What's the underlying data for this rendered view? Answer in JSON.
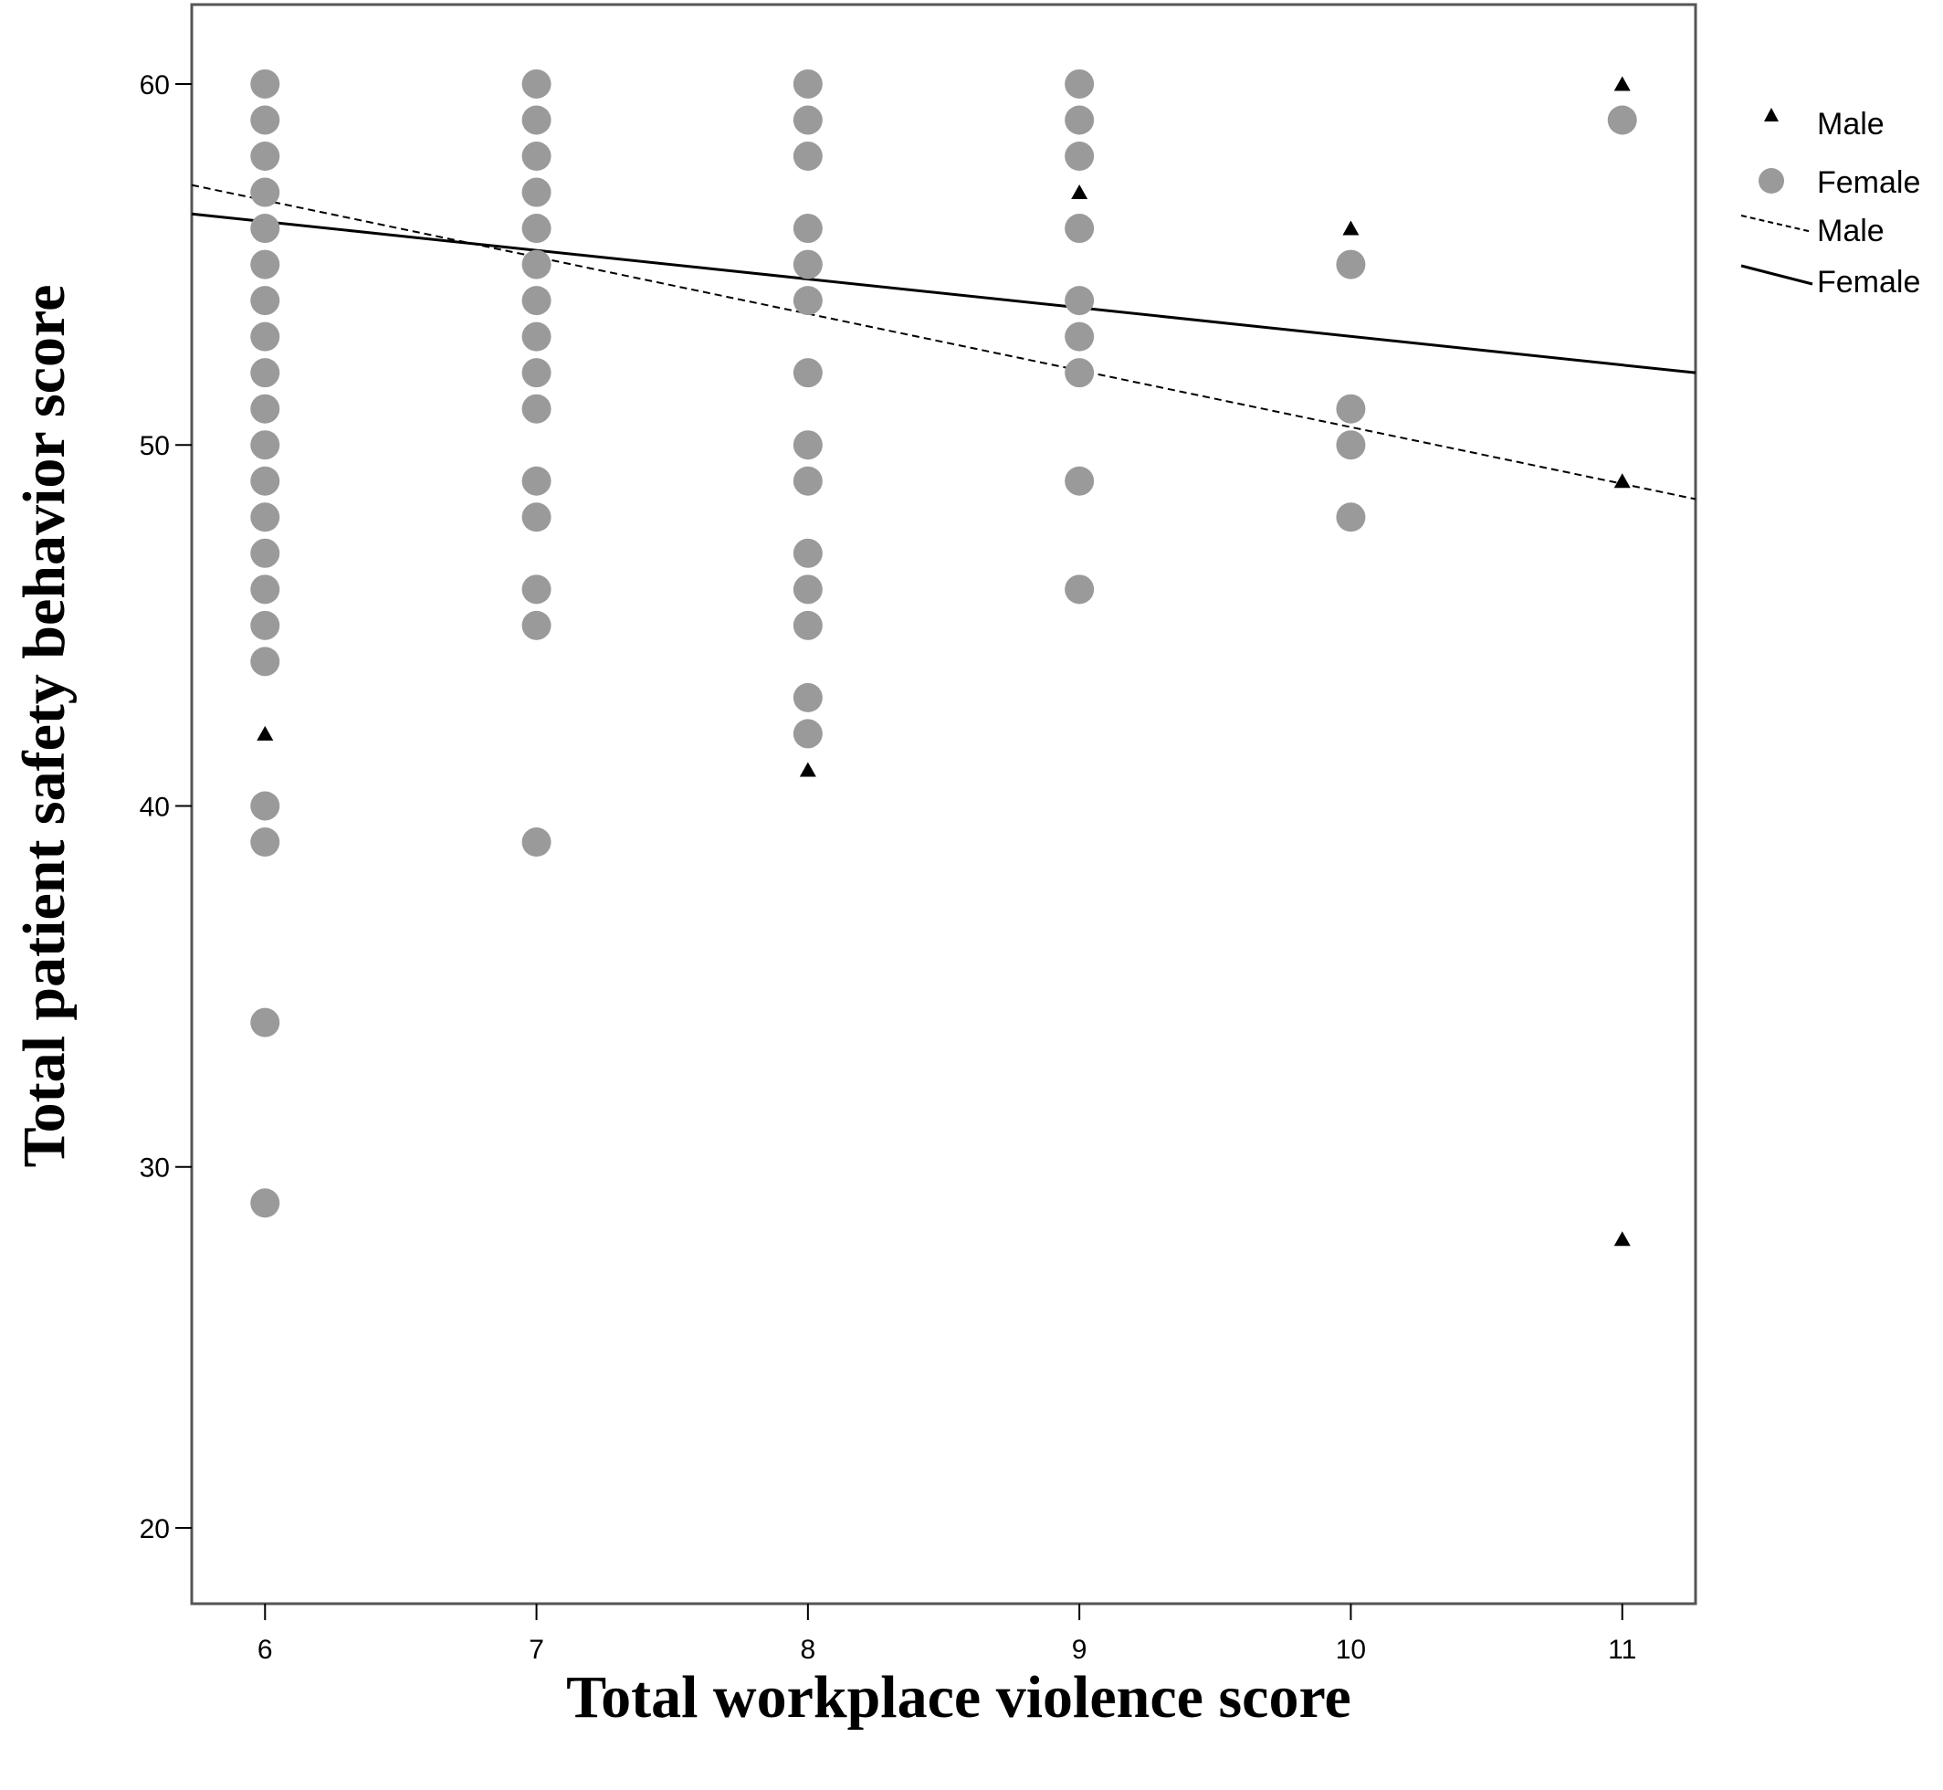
{
  "chart_data": {
    "type": "scatter",
    "title": "",
    "xlabel": "Total workplace violence score",
    "ylabel": "Total patient safety behavior score",
    "xlim": [
      5.73,
      11.27
    ],
    "ylim": [
      17.9,
      62.2
    ],
    "x_ticks": [
      6,
      7,
      8,
      9,
      10,
      11
    ],
    "y_ticks": [
      20,
      30,
      40,
      50,
      60
    ],
    "grid": false,
    "legend_position": "outside-right",
    "legend": [
      {
        "label": "Male",
        "kind": "marker-triangle"
      },
      {
        "label": "Female",
        "kind": "marker-circle"
      },
      {
        "label": "Male",
        "kind": "line-dashed"
      },
      {
        "label": "Female",
        "kind": "line-solid"
      }
    ],
    "colors": {
      "male": "#000000",
      "female": "#9a9a9a",
      "line": "#000000"
    },
    "series": [
      {
        "name": "Male",
        "marker": "triangle",
        "points": [
          [
            6,
            42
          ],
          [
            8,
            41
          ],
          [
            9,
            57
          ],
          [
            10,
            56
          ],
          [
            11,
            60
          ],
          [
            11,
            49
          ],
          [
            11,
            28
          ]
        ]
      },
      {
        "name": "Female",
        "marker": "circle",
        "points": [
          [
            6,
            60
          ],
          [
            6,
            59
          ],
          [
            6,
            58
          ],
          [
            6,
            57
          ],
          [
            6,
            56
          ],
          [
            6,
            55
          ],
          [
            6,
            54
          ],
          [
            6,
            53
          ],
          [
            6,
            52
          ],
          [
            6,
            51
          ],
          [
            6,
            50
          ],
          [
            6,
            49
          ],
          [
            6,
            48
          ],
          [
            6,
            47
          ],
          [
            6,
            46
          ],
          [
            6,
            45
          ],
          [
            6,
            44
          ],
          [
            6,
            40
          ],
          [
            6,
            39
          ],
          [
            6,
            34
          ],
          [
            6,
            29
          ],
          [
            7,
            60
          ],
          [
            7,
            59
          ],
          [
            7,
            58
          ],
          [
            7,
            57
          ],
          [
            7,
            56
          ],
          [
            7,
            55
          ],
          [
            7,
            54
          ],
          [
            7,
            53
          ],
          [
            7,
            52
          ],
          [
            7,
            51
          ],
          [
            7,
            49
          ],
          [
            7,
            48
          ],
          [
            7,
            46
          ],
          [
            7,
            45
          ],
          [
            7,
            39
          ],
          [
            8,
            60
          ],
          [
            8,
            59
          ],
          [
            8,
            58
          ],
          [
            8,
            56
          ],
          [
            8,
            55
          ],
          [
            8,
            54
          ],
          [
            8,
            52
          ],
          [
            8,
            50
          ],
          [
            8,
            49
          ],
          [
            8,
            47
          ],
          [
            8,
            46
          ],
          [
            8,
            45
          ],
          [
            8,
            43
          ],
          [
            8,
            42
          ],
          [
            9,
            60
          ],
          [
            9,
            59
          ],
          [
            9,
            58
          ],
          [
            9,
            56
          ],
          [
            9,
            54
          ],
          [
            9,
            53
          ],
          [
            9,
            52
          ],
          [
            9,
            49
          ],
          [
            9,
            46
          ],
          [
            10,
            55
          ],
          [
            10,
            51
          ],
          [
            10,
            50
          ],
          [
            10,
            48
          ],
          [
            11,
            59
          ]
        ]
      }
    ],
    "fit_lines": [
      {
        "name": "Male",
        "style": "dashed",
        "x": [
          5.73,
          11.27
        ],
        "y": [
          57.2,
          48.5
        ]
      },
      {
        "name": "Female",
        "style": "solid",
        "x": [
          5.73,
          11.27
        ],
        "y": [
          56.4,
          52.0
        ]
      }
    ]
  }
}
